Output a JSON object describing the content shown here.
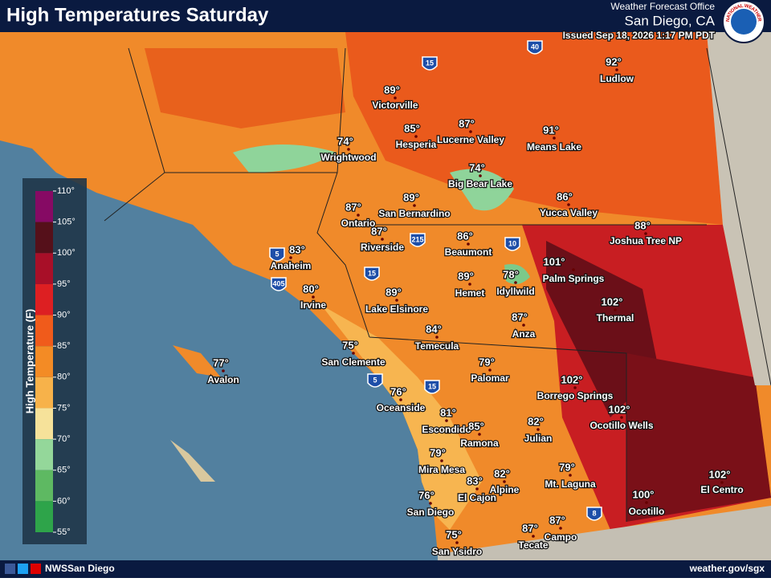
{
  "header": {
    "title": "High Temperatures Saturday",
    "office": "Weather Forecast Office",
    "location": "San Diego, CA",
    "issued": "Issued Sep 18, 2026 1:17 PM PDT"
  },
  "logo": {
    "text": "NATIONAL WEATHER SERVICE"
  },
  "legend": {
    "title": "High Temperature (F)",
    "ticks": [
      "110°",
      "105°",
      "100°",
      "95°",
      "90°",
      "85°",
      "80°",
      "75°",
      "70°",
      "65°",
      "60°",
      "55°"
    ]
  },
  "cities": [
    {
      "temp": "92°",
      "name": "Ludlow"
    },
    {
      "temp": "89°",
      "name": "Victorville"
    },
    {
      "temp": "85°",
      "name": "Hesperia"
    },
    {
      "temp": "87°",
      "name": "Lucerne Valley"
    },
    {
      "temp": "91°",
      "name": "Means Lake"
    },
    {
      "temp": "74°",
      "name": "Wrightwood"
    },
    {
      "temp": "74°",
      "name": "Big Bear Lake"
    },
    {
      "temp": "86°",
      "name": "Yucca Valley"
    },
    {
      "temp": "89°",
      "name": "San Bernardino"
    },
    {
      "temp": "87°",
      "name": "Ontario"
    },
    {
      "temp": "88°",
      "name": "Joshua Tree NP"
    },
    {
      "temp": "87°",
      "name": "Riverside"
    },
    {
      "temp": "86°",
      "name": "Beaumont"
    },
    {
      "temp": "83°",
      "name": "Anaheim"
    },
    {
      "temp": "101°",
      "name": "Palm Springs"
    },
    {
      "temp": "78°",
      "name": "Idyllwild"
    },
    {
      "temp": "89°",
      "name": "Hemet"
    },
    {
      "temp": "80°",
      "name": "Irvine"
    },
    {
      "temp": "89°",
      "name": "Lake Elsinore"
    },
    {
      "temp": "102°",
      "name": "Thermal"
    },
    {
      "temp": "87°",
      "name": "Anza"
    },
    {
      "temp": "84°",
      "name": "Temecula"
    },
    {
      "temp": "75°",
      "name": "San Clemente"
    },
    {
      "temp": "77°",
      "name": "Avalon"
    },
    {
      "temp": "79°",
      "name": "Palomar"
    },
    {
      "temp": "102°",
      "name": "Borrego Springs"
    },
    {
      "temp": "76°",
      "name": "Oceanside"
    },
    {
      "temp": "81°",
      "name": "Escondido"
    },
    {
      "temp": "85°",
      "name": "Ramona"
    },
    {
      "temp": "82°",
      "name": "Julian"
    },
    {
      "temp": "102°",
      "name": "Ocotillo Wells"
    },
    {
      "temp": "79°",
      "name": "Mira Mesa"
    },
    {
      "temp": "79°",
      "name": "Mt. Laguna"
    },
    {
      "temp": "82°",
      "name": "Alpine"
    },
    {
      "temp": "83°",
      "name": "El Cajon"
    },
    {
      "temp": "102°",
      "name": "El Centro"
    },
    {
      "temp": "76°",
      "name": "San Diego"
    },
    {
      "temp": "100°",
      "name": "Ocotillo"
    },
    {
      "temp": "87°",
      "name": "Campo"
    },
    {
      "temp": "87°",
      "name": "Tecate"
    },
    {
      "temp": "75°",
      "name": "San Ysidro"
    }
  ],
  "interstates": [
    "40",
    "15",
    "10",
    "5",
    "405",
    "215",
    "15",
    "5",
    "15",
    "8"
  ],
  "footer": {
    "social": "NWSSan Diego",
    "url": "weather.gov/sgx"
  }
}
